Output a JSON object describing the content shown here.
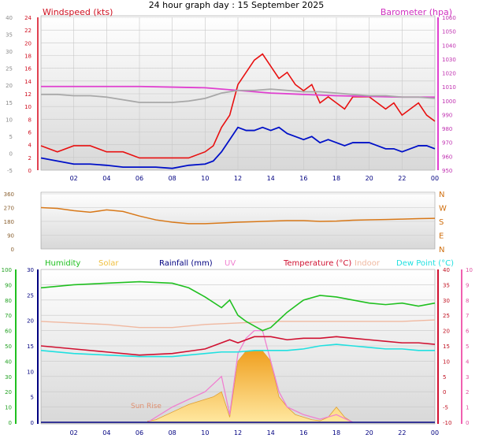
{
  "title": "24 hour graph day : 15 September 2025",
  "time_ticks": [
    "02",
    "04",
    "06",
    "08",
    "10",
    "12",
    "14",
    "16",
    "18",
    "20",
    "22",
    "00"
  ],
  "colors": {
    "wind": "#e81010",
    "wind_avg": "#0010c8",
    "wind_dir": "#d87818",
    "baro": "#e040d0",
    "baro2": "#a8a8a8",
    "humidity": "#20c020",
    "solar": "#f0c040",
    "rain": "#000080",
    "uv": "#f080d0",
    "temp": "#d01030",
    "indoor": "#f0b8a0",
    "dew": "#20e0e0"
  },
  "chart_data": [
    {
      "type": "line",
      "name": "wind-baro",
      "title": "Windspeed (kts)",
      "baro_title": "Barometer (hpa)",
      "x_ticks": [
        "02",
        "04",
        "06",
        "08",
        "10",
        "12",
        "14",
        "16",
        "18",
        "20",
        "22",
        "00"
      ],
      "left_outer_ticks": [
        "40",
        "35",
        "30",
        "25",
        "20",
        "15",
        "10",
        "5",
        "0",
        "-5"
      ],
      "left_inner_ticks": [
        "24",
        "22",
        "20",
        "18",
        "16",
        "14",
        "12",
        "10",
        "8",
        "6",
        "4",
        "2",
        "0"
      ],
      "right_ticks": [
        "1060",
        "1050",
        "1040",
        "1030",
        "1020",
        "1010",
        "1000",
        "990",
        "980",
        "970",
        "960",
        "950"
      ],
      "ylim": [
        0,
        25
      ],
      "baro_ylim": [
        945,
        1060
      ],
      "series": [
        {
          "name": "gust",
          "color": "#e81010",
          "x": [
            0,
            1,
            2,
            3,
            4,
            5,
            6,
            7,
            8,
            9,
            10,
            10.5,
            11,
            11.5,
            12,
            12.5,
            13,
            13.5,
            14,
            14.5,
            15,
            15.5,
            16,
            16.5,
            17,
            17.5,
            18,
            18.5,
            19,
            19.5,
            20,
            20.5,
            21,
            21.5,
            22,
            22.5,
            23,
            23.5,
            24
          ],
          "values": [
            4,
            3,
            4,
            4,
            3,
            3,
            2,
            2,
            2,
            2,
            3,
            4,
            7,
            9,
            14,
            16,
            18,
            19,
            17,
            15,
            16,
            14,
            13,
            14,
            11,
            12,
            11,
            10,
            12,
            12,
            12,
            11,
            10,
            11,
            9,
            10,
            11,
            9,
            8
          ]
        },
        {
          "name": "avg",
          "color": "#0010c8",
          "x": [
            0,
            1,
            2,
            3,
            4,
            5,
            6,
            7,
            8,
            9,
            10,
            10.5,
            11,
            11.5,
            12,
            12.5,
            13,
            13.5,
            14,
            14.5,
            15,
            15.5,
            16,
            16.5,
            17,
            17.5,
            18,
            18.5,
            19,
            19.5,
            20,
            20.5,
            21,
            21.5,
            22,
            22.5,
            23,
            23.5,
            24
          ],
          "values": [
            2,
            1.5,
            1,
            1,
            0.8,
            0.5,
            0.5,
            0.5,
            0.3,
            0.8,
            1,
            1.5,
            3,
            5,
            7,
            6.5,
            6.5,
            7,
            6.5,
            7,
            6,
            5.5,
            5,
            5.5,
            4.5,
            5,
            4.5,
            4,
            4.5,
            4.5,
            4.5,
            4,
            3.5,
            3.5,
            3,
            3.5,
            4,
            4,
            3.5
          ]
        },
        {
          "name": "baro",
          "color": "#e040d0",
          "x": [
            0,
            2,
            4,
            6,
            8,
            10,
            12,
            14,
            16,
            18,
            20,
            22,
            24
          ],
          "values": [
            1008,
            1008,
            1008,
            1008,
            1007.5,
            1007,
            1005,
            1003,
            1002,
            1001,
            1000.5,
            1000,
            1000
          ]
        },
        {
          "name": "baro2",
          "color": "#a8a8a8",
          "x": [
            0,
            1,
            2,
            3,
            4,
            5,
            6,
            7,
            8,
            9,
            10,
            11,
            12,
            13,
            14,
            15,
            16,
            17,
            18,
            19,
            20,
            21,
            22,
            23,
            24
          ],
          "values": [
            1002,
            1002,
            1001,
            1001,
            1000,
            998,
            996,
            996,
            996,
            997,
            999,
            1003,
            1005,
            1005,
            1006,
            1005,
            1004,
            1004,
            1003,
            1002,
            1001,
            1001,
            1000,
            1000,
            999
          ]
        }
      ]
    },
    {
      "type": "line",
      "name": "wind-direction",
      "left_ticks": [
        "360",
        "270",
        "180",
        "90",
        "0"
      ],
      "right_labels": [
        "N",
        "W",
        "S",
        "E",
        "N"
      ],
      "ylim": [
        0,
        360
      ],
      "series": [
        {
          "name": "direction",
          "color": "#d87818",
          "x": [
            0,
            1,
            2,
            3,
            4,
            5,
            6,
            7,
            8,
            9,
            10,
            11,
            12,
            13,
            14,
            15,
            16,
            17,
            18,
            19,
            20,
            21,
            22,
            23,
            24
          ],
          "values": [
            270,
            265,
            250,
            240,
            255,
            245,
            215,
            190,
            175,
            165,
            165,
            170,
            175,
            178,
            182,
            185,
            185,
            180,
            182,
            188,
            190,
            192,
            195,
            198,
            200
          ]
        }
      ]
    },
    {
      "type": "line",
      "name": "temp-humidity",
      "legend": [
        "Humidity",
        "Solar",
        "Rainfall (mm)",
        "UV",
        "Temperature (°C)",
        "Indoor",
        "Dew Point (°C)"
      ],
      "humidity_ticks": [
        "100",
        "90",
        "80",
        "70",
        "60",
        "50",
        "40",
        "30",
        "20",
        "10",
        "0"
      ],
      "solar_ticks": [
        "30",
        "25",
        "20",
        "15",
        "10",
        "5",
        "0"
      ],
      "temp_ticks": [
        "40",
        "35",
        "30",
        "25",
        "20",
        "15",
        "10",
        "5",
        "0",
        "-5",
        "-10"
      ],
      "uv_ticks": [
        "10",
        "9",
        "8",
        "7",
        "6",
        "5",
        "4",
        "3",
        "2",
        "1",
        "0"
      ],
      "annotation": "Sun Rise",
      "series": [
        {
          "name": "Humidity",
          "color": "#20c020",
          "x": [
            0,
            2,
            4,
            6,
            8,
            9,
            10,
            11,
            11.5,
            12,
            12.5,
            13,
            13.5,
            14,
            14.5,
            15,
            16,
            17,
            18,
            19,
            20,
            21,
            22,
            23,
            24
          ],
          "values": [
            88,
            90,
            91,
            92,
            91,
            88,
            82,
            75,
            80,
            70,
            66,
            63,
            60,
            62,
            67,
            72,
            80,
            83,
            82,
            80,
            78,
            77,
            78,
            76,
            78
          ]
        },
        {
          "name": "Temperature",
          "color": "#d01030",
          "x": [
            0,
            2,
            4,
            6,
            8,
            10,
            11,
            11.5,
            12,
            13,
            14,
            15,
            16,
            17,
            18,
            19,
            20,
            21,
            22,
            23,
            24
          ],
          "values": [
            15,
            14,
            13,
            12,
            12.5,
            14,
            16,
            17,
            16,
            18,
            18,
            17,
            17.5,
            17.5,
            18,
            17.5,
            17,
            16.5,
            16,
            16,
            15.5
          ]
        },
        {
          "name": "Dew Point",
          "color": "#20e0e0",
          "x": [
            0,
            2,
            4,
            6,
            8,
            10,
            11,
            12,
            13,
            14,
            15,
            16,
            17,
            18,
            19,
            20,
            21,
            22,
            23,
            24
          ],
          "values": [
            13.5,
            12.5,
            12,
            11.5,
            11.5,
            12.5,
            13,
            13,
            13.5,
            13.5,
            13.5,
            14,
            15,
            15.5,
            15,
            14.5,
            14,
            14,
            13.5,
            13.5
          ]
        },
        {
          "name": "Indoor",
          "color": "#f0b8a0",
          "x": [
            0,
            2,
            4,
            6,
            8,
            10,
            12,
            14,
            16,
            18,
            20,
            22,
            24
          ],
          "values": [
            23,
            22.5,
            22,
            21,
            21,
            22,
            22.5,
            23,
            23,
            23,
            23,
            23,
            23.5
          ]
        },
        {
          "name": "Solar",
          "color": "#f0c040",
          "x": [
            6.5,
            7,
            8,
            9,
            10,
            10.5,
            11,
            11.5,
            12,
            12.5,
            13,
            13.5,
            14,
            14.5,
            15,
            15.5,
            16,
            16.5,
            17,
            17.5,
            18,
            18.5,
            19
          ],
          "values": [
            0.2,
            0.5,
            2,
            3.5,
            4.5,
            5,
            6,
            1,
            12,
            14,
            14,
            14,
            12,
            5,
            3,
            1.5,
            1,
            0.5,
            0.3,
            1,
            3,
            1,
            0
          ]
        },
        {
          "name": "UV",
          "color": "#f080d0",
          "x": [
            6.5,
            8,
            9,
            10,
            11,
            11.5,
            12,
            12.5,
            13,
            13.5,
            14,
            14.5,
            15,
            16,
            17,
            18,
            19
          ],
          "values": [
            0,
            1,
            1.5,
            2,
            3,
            0.5,
            4.5,
            5.5,
            6,
            6,
            4,
            2,
            1,
            0.5,
            0.2,
            0.5,
            0
          ]
        },
        {
          "name": "Rainfall",
          "color": "#000080",
          "x": [
            0,
            24
          ],
          "values": [
            0,
            0
          ]
        }
      ]
    }
  ]
}
